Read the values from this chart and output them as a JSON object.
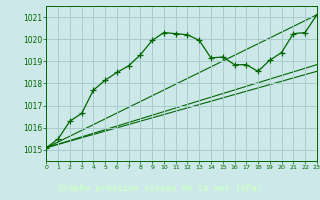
{
  "background_color": "#cce8e8",
  "grid_color": "#aacccc",
  "line_color": "#006600",
  "title": "Graphe pression niveau de la mer (hPa)",
  "xlim": [
    0,
    23
  ],
  "ylim": [
    1014.5,
    1021.5
  ],
  "xticks": [
    0,
    1,
    2,
    3,
    4,
    5,
    6,
    7,
    8,
    9,
    10,
    11,
    12,
    13,
    14,
    15,
    16,
    17,
    18,
    19,
    20,
    21,
    22,
    23
  ],
  "yticks": [
    1015,
    1016,
    1017,
    1018,
    1019,
    1020,
    1021
  ],
  "xlabel_bg": "#006633",
  "xlabel_fg": "#ccffcc",
  "series_main": {
    "x": [
      0,
      1,
      2,
      3,
      4,
      5,
      6,
      7,
      8,
      9,
      10,
      11,
      12,
      13,
      14,
      15,
      16,
      17,
      18,
      19,
      20,
      21,
      22,
      23
    ],
    "y": [
      1015.1,
      1015.5,
      1016.3,
      1016.65,
      1017.7,
      1018.15,
      1018.5,
      1018.8,
      1019.3,
      1019.95,
      1020.3,
      1020.25,
      1020.2,
      1019.95,
      1019.15,
      1019.2,
      1018.85,
      1018.85,
      1018.55,
      1019.05,
      1019.4,
      1020.25,
      1020.3,
      1021.1
    ]
  },
  "series_lines": [
    {
      "x": [
        0,
        23
      ],
      "y": [
        1015.1,
        1021.1
      ]
    },
    {
      "x": [
        0,
        23
      ],
      "y": [
        1015.1,
        1018.85
      ]
    },
    {
      "x": [
        0,
        23
      ],
      "y": [
        1015.1,
        1018.55
      ]
    }
  ]
}
